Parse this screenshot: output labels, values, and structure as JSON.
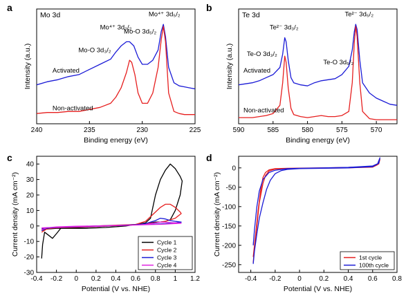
{
  "chart_data": [
    {
      "panel": "a",
      "type": "line",
      "title": "Mo 3d",
      "xlabel": "Binding energy (eV)",
      "ylabel": "Intensity (a.u.)",
      "xlim": [
        240,
        225
      ],
      "x_reversed": true,
      "xticks": [
        240,
        235,
        230,
        225
      ],
      "y_ticks_shown": false,
      "series": [
        {
          "name": "Activated",
          "color": "#1a1ad6",
          "x": [
            240,
            239,
            238,
            237,
            236,
            235,
            234,
            233,
            232.5,
            232,
            231.5,
            231.2,
            230.8,
            230.4,
            230,
            229.5,
            229,
            228.5,
            228.2,
            228,
            227.8,
            227.5,
            227,
            226.5,
            226,
            225.5,
            225
          ],
          "y": [
            0.38,
            0.41,
            0.43,
            0.46,
            0.48,
            0.53,
            0.58,
            0.63,
            0.7,
            0.76,
            0.8,
            0.8,
            0.76,
            0.65,
            0.58,
            0.58,
            0.62,
            0.72,
            0.9,
            0.97,
            0.85,
            0.55,
            0.4,
            0.37,
            0.36,
            0.35,
            0.34
          ]
        },
        {
          "name": "Non-activated",
          "color": "#e61e1e",
          "x": [
            240,
            239,
            238,
            237,
            236,
            235,
            234,
            233,
            232.5,
            232,
            231.5,
            231.2,
            231,
            230.7,
            230.4,
            230,
            229.5,
            229,
            228.5,
            228.2,
            228,
            227.8,
            227.5,
            227,
            226.5,
            226,
            225.5,
            225
          ],
          "y": [
            0.1,
            0.11,
            0.11,
            0.12,
            0.12,
            0.14,
            0.16,
            0.2,
            0.26,
            0.35,
            0.5,
            0.62,
            0.6,
            0.48,
            0.3,
            0.2,
            0.2,
            0.3,
            0.55,
            0.82,
            0.95,
            0.8,
            0.3,
            0.12,
            0.1,
            0.09,
            0.09,
            0.09
          ]
        }
      ],
      "annotations": [
        {
          "text": "Mo⁴⁺ 3d₃/₂",
          "x": 232.5,
          "y": 0.92
        },
        {
          "text": "Mo-O 3d₅/₂",
          "x": 230.2,
          "y": 0.88
        },
        {
          "text": "Mo⁴⁺ 3d₅/₂",
          "x": 227.9,
          "y": 1.05
        },
        {
          "text": "Mo-O 3d₃/₂",
          "x": 234.5,
          "y": 0.7
        },
        {
          "text": "Activated",
          "x": 238.5,
          "y": 0.5
        },
        {
          "text": "Non-activated",
          "x": 238.5,
          "y": 0.13
        }
      ]
    },
    {
      "panel": "b",
      "type": "line",
      "title": "Te 3d",
      "xlabel": "Binding energy (eV)",
      "ylabel": "Intensity (a.u.)",
      "xlim": [
        590,
        567
      ],
      "x_reversed": true,
      "xticks": [
        590,
        585,
        580,
        575,
        570
      ],
      "y_ticks_shown": false,
      "series": [
        {
          "name": "Activated",
          "color": "#1a1ad6",
          "x": [
            590,
            589,
            588,
            587,
            586,
            585,
            584,
            583.6,
            583.3,
            583.1,
            582.8,
            582.4,
            582,
            581,
            580,
            579,
            578,
            577,
            576,
            575,
            574,
            573.5,
            573.2,
            573,
            572.8,
            572.4,
            572,
            571,
            570,
            569,
            568,
            567
          ],
          "y": [
            0.38,
            0.39,
            0.4,
            0.42,
            0.45,
            0.48,
            0.55,
            0.68,
            0.84,
            0.8,
            0.62,
            0.45,
            0.4,
            0.38,
            0.37,
            0.4,
            0.42,
            0.43,
            0.44,
            0.48,
            0.56,
            0.72,
            0.9,
            0.97,
            0.92,
            0.62,
            0.4,
            0.3,
            0.25,
            0.22,
            0.19,
            0.18
          ]
        },
        {
          "name": "Non-activated",
          "color": "#e61e1e",
          "x": [
            590,
            589,
            588,
            587,
            586,
            585,
            584,
            583.6,
            583.3,
            583.1,
            582.8,
            582.4,
            582,
            581,
            580,
            579,
            578,
            577,
            576,
            575,
            574,
            573.5,
            573.2,
            573,
            572.8,
            572.4,
            572,
            571,
            570,
            569,
            568,
            567
          ],
          "y": [
            0.06,
            0.06,
            0.06,
            0.07,
            0.08,
            0.1,
            0.18,
            0.4,
            0.66,
            0.6,
            0.35,
            0.15,
            0.09,
            0.07,
            0.06,
            0.07,
            0.08,
            0.07,
            0.07,
            0.08,
            0.12,
            0.4,
            0.8,
            0.95,
            0.85,
            0.4,
            0.12,
            0.05,
            0.04,
            0.04,
            0.04,
            0.04
          ]
        }
      ],
      "annotations": [
        {
          "text": "Te²⁻ 3d₃/₂",
          "x": 583.4,
          "y": 0.92
        },
        {
          "text": "Te²⁻ 3d₅/₂",
          "x": 572.5,
          "y": 1.05
        },
        {
          "text": "Te-O 3d₃/₂",
          "x": 586.6,
          "y": 0.66
        },
        {
          "text": "Te-O 3d₅/₂",
          "x": 575.5,
          "y": 0.58
        },
        {
          "text": "Activated",
          "x": 589.3,
          "y": 0.5
        },
        {
          "text": "Non-activated",
          "x": 589.3,
          "y": 0.11
        }
      ]
    },
    {
      "panel": "c",
      "type": "line",
      "xlabel": "Potential (V vs. NHE)",
      "ylabel": "Current density (mA cm⁻²)",
      "xlim": [
        -0.4,
        1.2
      ],
      "ylim": [
        -30,
        45
      ],
      "xticks": [
        -0.4,
        -0.2,
        0.0,
        0.2,
        0.4,
        0.6,
        0.8,
        1.0,
        1.2
      ],
      "yticks": [
        -30,
        -20,
        -10,
        0,
        10,
        20,
        30,
        40
      ],
      "legend_position": "bottom-right",
      "series": [
        {
          "name": "Cycle 1",
          "color": "#000000",
          "x": [
            -0.35,
            -0.34,
            -0.32,
            -0.28,
            -0.24,
            -0.2,
            -0.15,
            0.0,
            0.2,
            0.4,
            0.6,
            0.7,
            0.75,
            0.8,
            0.85,
            0.9,
            0.95,
            1.0,
            1.05,
            1.07,
            1.05,
            1.0,
            0.95,
            0.9,
            0.85,
            0.8,
            0.75,
            0.7,
            0.65,
            0.6,
            0.5,
            0.3,
            0.1,
            -0.1,
            -0.2,
            -0.3,
            -0.35
          ],
          "y": [
            -21,
            -12,
            -4,
            -6,
            -8,
            -5,
            -1,
            -1,
            -0.5,
            0.2,
            1,
            2,
            5,
            20,
            30,
            36,
            40,
            37,
            32,
            29,
            20,
            10,
            4,
            3,
            2.5,
            2.5,
            2,
            1.5,
            1.5,
            1,
            0,
            -1,
            -1.5,
            -1.5,
            -1.5,
            -2,
            -3
          ]
        },
        {
          "name": "Cycle 2",
          "color": "#e61e1e",
          "x": [
            -0.35,
            -0.3,
            -0.2,
            0.0,
            0.2,
            0.4,
            0.6,
            0.7,
            0.8,
            0.85,
            0.9,
            0.95,
            1.0,
            1.05,
            1.06,
            1.0,
            0.9,
            0.8,
            0.7,
            0.6,
            0.4,
            0.2,
            0.0,
            -0.2,
            -0.35
          ],
          "y": [
            -4,
            -2,
            -1,
            -0.5,
            0,
            0.5,
            1,
            3,
            9,
            12,
            14,
            14,
            12,
            9,
            8,
            5,
            3,
            2,
            1.5,
            1,
            0.3,
            -0.5,
            -0.8,
            -1.2,
            -2
          ]
        },
        {
          "name": "Cycle 3",
          "color": "#1a1ad6",
          "x": [
            -0.35,
            -0.3,
            -0.2,
            0.0,
            0.2,
            0.4,
            0.6,
            0.7,
            0.8,
            0.85,
            0.9,
            0.95,
            1.0,
            1.05,
            1.06,
            1.0,
            0.9,
            0.8,
            0.7,
            0.6,
            0.4,
            0.2,
            0.0,
            -0.2,
            -0.35
          ],
          "y": [
            -3,
            -1.5,
            -0.8,
            -0.3,
            0,
            0.3,
            0.8,
            1.5,
            3.5,
            5,
            4.5,
            3.5,
            3,
            2.6,
            2.5,
            2,
            1.5,
            1.2,
            1,
            0.8,
            0.3,
            -0.3,
            -0.6,
            -1,
            -1.5
          ]
        },
        {
          "name": "Cycle 4",
          "color": "#e020e0",
          "x": [
            -0.35,
            -0.3,
            -0.2,
            0.0,
            0.2,
            0.4,
            0.6,
            0.7,
            0.8,
            0.85,
            0.9,
            0.95,
            1.0,
            1.05,
            1.06,
            1.0,
            0.9,
            0.8,
            0.7,
            0.6,
            0.4,
            0.2,
            0.0,
            -0.2,
            -0.35
          ],
          "y": [
            -2.5,
            -1.2,
            -0.6,
            -0.2,
            0,
            0.3,
            0.6,
            1,
            2,
            2.5,
            2.4,
            2.2,
            2,
            1.9,
            1.8,
            1.5,
            1.2,
            1,
            0.8,
            0.6,
            0.2,
            -0.2,
            -0.5,
            -0.8,
            -1.2
          ]
        }
      ]
    },
    {
      "panel": "d",
      "type": "line",
      "xlabel": "Potential (V vs. NHE)",
      "ylabel": "Current density (mA cm⁻²)",
      "xlim": [
        -0.5,
        0.8
      ],
      "ylim": [
        -270,
        30
      ],
      "xticks": [
        -0.4,
        -0.2,
        0.0,
        0.2,
        0.4,
        0.6,
        0.8
      ],
      "yticks": [
        -250,
        -200,
        -150,
        -100,
        -50,
        0
      ],
      "legend_position": "bottom-right",
      "series": [
        {
          "name": "1st cycle",
          "color": "#e61e1e",
          "x": [
            -0.38,
            -0.37,
            -0.35,
            -0.33,
            -0.3,
            -0.28,
            -0.25,
            -0.2,
            -0.1,
            0.0,
            0.2,
            0.4,
            0.6,
            0.64,
            0.66,
            0.65,
            0.6,
            0.4,
            0.2,
            0.0,
            -0.1,
            -0.2,
            -0.25,
            -0.28,
            -0.3,
            -0.32,
            -0.34,
            -0.36,
            -0.38
          ],
          "y": [
            -245,
            -205,
            -150,
            -90,
            -40,
            -20,
            -8,
            -3,
            -1.5,
            -1,
            -0.5,
            0,
            2,
            8,
            22,
            10,
            4,
            1,
            0,
            -0.5,
            -1,
            -2,
            -5,
            -12,
            -25,
            -60,
            -110,
            -170,
            -230
          ]
        },
        {
          "name": "100th cycle",
          "color": "#1a1ad6",
          "x": [
            -0.38,
            -0.37,
            -0.35,
            -0.33,
            -0.3,
            -0.27,
            -0.24,
            -0.2,
            -0.15,
            -0.1,
            0.0,
            0.2,
            0.4,
            0.6,
            0.64,
            0.66,
            0.65,
            0.6,
            0.4,
            0.2,
            0.0,
            -0.1,
            -0.2,
            -0.25,
            -0.3,
            -0.33,
            -0.35,
            -0.37,
            -0.38
          ],
          "y": [
            -248,
            -215,
            -170,
            -130,
            -90,
            -55,
            -32,
            -15,
            -7,
            -4,
            -2,
            -1,
            0,
            3,
            10,
            26,
            12,
            5,
            1.5,
            0,
            -1,
            -2,
            -6,
            -12,
            -30,
            -60,
            -100,
            -160,
            -200
          ]
        }
      ]
    }
  ]
}
